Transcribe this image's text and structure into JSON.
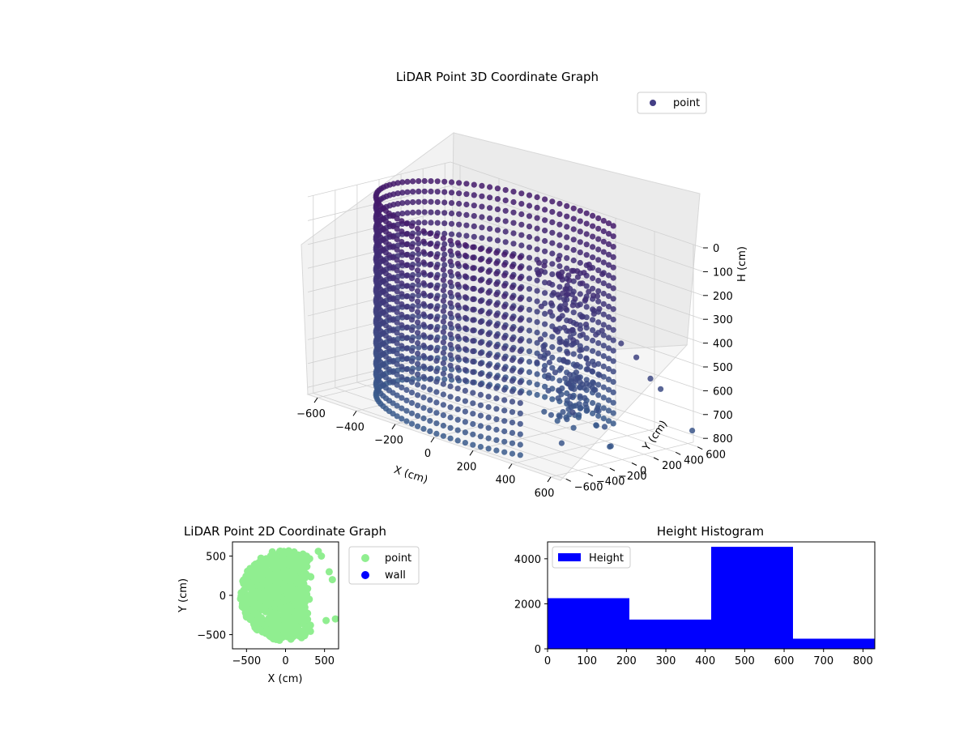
{
  "chart_data": [
    {
      "type": "scatter",
      "title": "LiDAR Point 3D Coordinate Graph",
      "xlabel": "X (cm)",
      "ylabel": "Y (cm)",
      "zlabel": "H (cm)",
      "x_ticks": [
        "−600",
        "−400",
        "−200",
        "0",
        "200",
        "400",
        "600"
      ],
      "y_ticks": [
        "600",
        "400",
        "200",
        "0",
        "−200",
        "−400",
        "−600"
      ],
      "z_ticks": [
        "0",
        "100",
        "200",
        "300",
        "400",
        "500",
        "600",
        "700",
        "800"
      ],
      "xlim": [
        -650,
        650
      ],
      "ylim": [
        -650,
        650
      ],
      "zlim": [
        0,
        830
      ],
      "z_inverted": true,
      "legend": {
        "position": "top-right",
        "entries": [
          {
            "label": "point",
            "color": "#433e85"
          }
        ]
      },
      "series": [
        {
          "name": "point",
          "description_of_shape": "points on a cylinder wall of radius ~580 cm spanning x<0 half, plus scattered outlier points",
          "cylinder": {
            "radius": 580,
            "h_min": 0,
            "h_max": 830
          },
          "outliers": [
            [
              200,
              350,
              380
            ],
            [
              260,
              420,
              430
            ],
            [
              330,
              470,
              470
            ],
            [
              380,
              520,
              520
            ],
            [
              430,
              560,
              600
            ],
            [
              460,
              600,
              640
            ],
            [
              250,
              280,
              700
            ],
            [
              300,
              300,
              740
            ],
            [
              350,
              230,
              720
            ],
            [
              420,
              160,
              760
            ],
            [
              480,
              100,
              820
            ],
            [
              520,
              40,
              800
            ],
            [
              430,
              -250,
              780
            ],
            [
              560,
              -380,
              600
            ],
            [
              600,
              640,
              780
            ]
          ]
        }
      ]
    },
    {
      "type": "scatter",
      "title": "LiDAR Point 2D Coordinate Graph",
      "xlabel": "X (cm)",
      "ylabel": "Y (cm)",
      "x_ticks": [
        "−500",
        "0",
        "500"
      ],
      "y_ticks": [
        "500",
        "0",
        "−500"
      ],
      "xlim": [
        -680,
        680
      ],
      "ylim": [
        -680,
        680
      ],
      "legend": {
        "position": "outside-right",
        "entries": [
          {
            "label": "point",
            "color": "#90ee90"
          },
          {
            "label": "wall",
            "color": "#0000ff"
          }
        ]
      },
      "series": [
        {
          "name": "point",
          "color": "#90ee90",
          "cloud": {
            "center": [
              0,
              0
            ],
            "radius": 580,
            "x_max": 200
          }
        },
        {
          "name": "wall",
          "color": "#0000ff",
          "points": []
        }
      ]
    },
    {
      "type": "bar",
      "title": "Height Histogram",
      "xlabel": "",
      "ylabel": "",
      "x_ticks": [
        "0",
        "100",
        "200",
        "300",
        "400",
        "500",
        "600",
        "700",
        "800"
      ],
      "y_ticks": [
        "0",
        "2000",
        "4000"
      ],
      "xlim": [
        0,
        830
      ],
      "ylim": [
        0,
        4750
      ],
      "bin_edges": [
        0,
        207.5,
        415,
        622.5,
        830
      ],
      "values": [
        2250,
        1300,
        4530,
        450
      ],
      "series": [
        {
          "name": "Height",
          "color": "#0000ff"
        }
      ],
      "legend": {
        "position": "top-left",
        "entries": [
          {
            "label": "Height",
            "color": "#0000ff"
          }
        ]
      }
    }
  ]
}
